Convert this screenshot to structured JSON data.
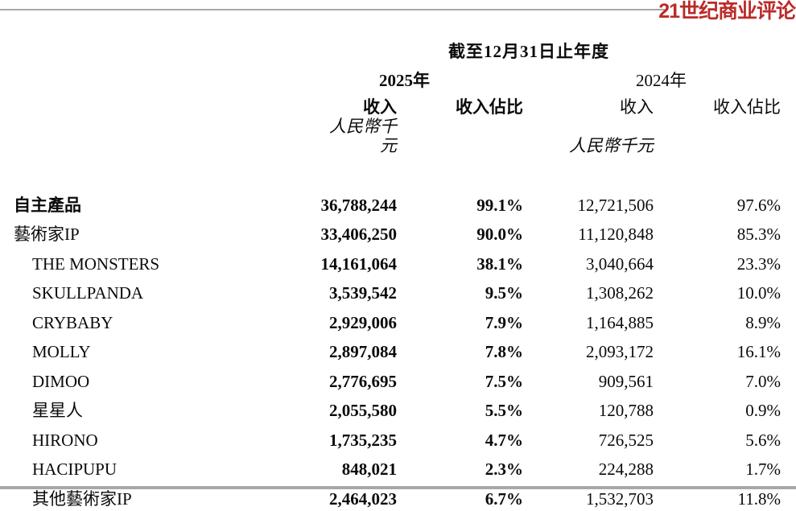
{
  "logo": {
    "text": "21世纪商业评论",
    "color": "#bb2a28"
  },
  "table": {
    "period_header": "截至12月31日止年度",
    "year_2025": "2025年",
    "year_2024": "2024年",
    "col_revenue": "收入",
    "col_share": "收入佔比",
    "unit": "人民幣千元",
    "rows": [
      {
        "label": "自主產品",
        "indent": false,
        "label_bold": true,
        "revenue_2025": "36,788,244",
        "share_2025": "99.1%",
        "revenue_2024": "12,721,506",
        "share_2024": "97.6%"
      },
      {
        "label": "藝術家IP",
        "indent": false,
        "label_bold": false,
        "revenue_2025": "33,406,250",
        "share_2025": "90.0%",
        "revenue_2024": "11,120,848",
        "share_2024": "85.3%"
      },
      {
        "label": "THE MONSTERS",
        "indent": true,
        "label_bold": false,
        "revenue_2025": "14,161,064",
        "share_2025": "38.1%",
        "revenue_2024": "3,040,664",
        "share_2024": "23.3%"
      },
      {
        "label": "SKULLPANDA",
        "indent": true,
        "label_bold": false,
        "revenue_2025": "3,539,542",
        "share_2025": "9.5%",
        "revenue_2024": "1,308,262",
        "share_2024": "10.0%"
      },
      {
        "label": "CRYBABY",
        "indent": true,
        "label_bold": false,
        "revenue_2025": "2,929,006",
        "share_2025": "7.9%",
        "revenue_2024": "1,164,885",
        "share_2024": "8.9%"
      },
      {
        "label": "MOLLY",
        "indent": true,
        "label_bold": false,
        "revenue_2025": "2,897,084",
        "share_2025": "7.8%",
        "revenue_2024": "2,093,172",
        "share_2024": "16.1%"
      },
      {
        "label": "DIMOO",
        "indent": true,
        "label_bold": false,
        "revenue_2025": "2,776,695",
        "share_2025": "7.5%",
        "revenue_2024": "909,561",
        "share_2024": "7.0%"
      },
      {
        "label": "星星人",
        "indent": true,
        "label_bold": false,
        "revenue_2025": "2,055,580",
        "share_2025": "5.5%",
        "revenue_2024": "120,788",
        "share_2024": "0.9%"
      },
      {
        "label": "HIRONO",
        "indent": true,
        "label_bold": false,
        "revenue_2025": "1,735,235",
        "share_2025": "4.7%",
        "revenue_2024": "726,525",
        "share_2024": "5.6%"
      },
      {
        "label": "HACIPUPU",
        "indent": true,
        "label_bold": false,
        "revenue_2025": "848,021",
        "share_2025": "2.3%",
        "revenue_2024": "224,288",
        "share_2024": "1.7%"
      },
      {
        "label": "其他藝術家IP",
        "indent": true,
        "label_bold": false,
        "revenue_2025": "2,464,023",
        "share_2025": "6.7%",
        "revenue_2024": "1,532,703",
        "share_2024": "11.8%"
      }
    ]
  }
}
